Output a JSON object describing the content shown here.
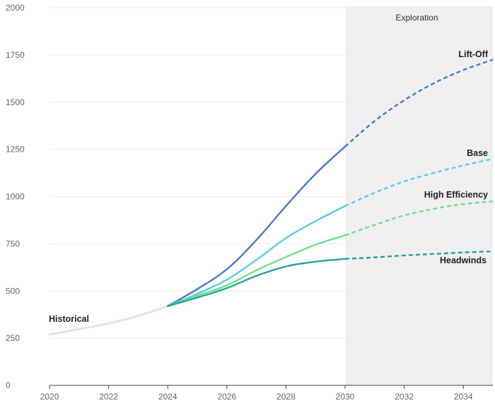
{
  "chart_data": {
    "type": "line",
    "x_axis": {
      "range": [
        2020,
        2035
      ],
      "ticks": [
        2020,
        2022,
        2024,
        2026,
        2028,
        2030,
        2032,
        2034
      ],
      "tick_labels": [
        "2020",
        "2022",
        "2024",
        "2026",
        "2028",
        "2030",
        "2032",
        "2034"
      ]
    },
    "y_axis": {
      "range": [
        0,
        2000
      ],
      "ticks": [
        0,
        250,
        500,
        750,
        1000,
        1250,
        1500,
        1750,
        2000
      ],
      "tick_labels": [
        "0",
        "250",
        "500",
        "750",
        "1000",
        "1250",
        "1500",
        "1750",
        "2000"
      ]
    },
    "grid": "horizontal",
    "regions": [
      {
        "label": "Exploration",
        "x_start": 2030,
        "x_end": 2035,
        "color": "#efefef"
      }
    ],
    "series": [
      {
        "name": "Historical",
        "color": "#e4e4e4",
        "style": "solid",
        "points": [
          [
            2020,
            270
          ],
          [
            2021,
            298
          ],
          [
            2022,
            328
          ],
          [
            2023,
            368
          ],
          [
            2024,
            420
          ]
        ]
      },
      {
        "name": "Lift-Off",
        "color": "#4a78cc",
        "solid_points": [
          [
            2024,
            420
          ],
          [
            2025,
            510
          ],
          [
            2026,
            615
          ],
          [
            2027,
            770
          ],
          [
            2028,
            950
          ],
          [
            2029,
            1120
          ],
          [
            2030,
            1265
          ]
        ],
        "dashed_points": [
          [
            2030,
            1265
          ],
          [
            2031,
            1400
          ],
          [
            2032,
            1510
          ],
          [
            2033,
            1600
          ],
          [
            2034,
            1670
          ],
          [
            2035,
            1725
          ]
        ]
      },
      {
        "name": "Base",
        "color": "#5ccbea",
        "solid_points": [
          [
            2024,
            420
          ],
          [
            2025,
            485
          ],
          [
            2026,
            560
          ],
          [
            2027,
            665
          ],
          [
            2028,
            780
          ],
          [
            2029,
            870
          ],
          [
            2030,
            950
          ]
        ],
        "dashed_points": [
          [
            2030,
            950
          ],
          [
            2031,
            1020
          ],
          [
            2032,
            1080
          ],
          [
            2033,
            1125
          ],
          [
            2034,
            1165
          ],
          [
            2035,
            1200
          ]
        ]
      },
      {
        "name": "High Efficiency",
        "color": "#6fe08a",
        "solid_points": [
          [
            2024,
            420
          ],
          [
            2025,
            475
          ],
          [
            2026,
            530
          ],
          [
            2027,
            610
          ],
          [
            2028,
            680
          ],
          [
            2029,
            745
          ],
          [
            2030,
            795
          ]
        ],
        "dashed_points": [
          [
            2030,
            795
          ],
          [
            2031,
            850
          ],
          [
            2032,
            900
          ],
          [
            2033,
            935
          ],
          [
            2034,
            960
          ],
          [
            2035,
            975
          ]
        ]
      },
      {
        "name": "Headwinds",
        "color": "#27a393",
        "solid_points": [
          [
            2024,
            420
          ],
          [
            2025,
            465
          ],
          [
            2026,
            515
          ],
          [
            2027,
            580
          ],
          [
            2028,
            630
          ],
          [
            2029,
            655
          ],
          [
            2030,
            670
          ]
        ],
        "dashed_points": [
          [
            2030,
            670
          ],
          [
            2031,
            678
          ],
          [
            2032,
            688
          ],
          [
            2033,
            696
          ],
          [
            2034,
            704
          ],
          [
            2035,
            710
          ]
        ]
      }
    ]
  }
}
